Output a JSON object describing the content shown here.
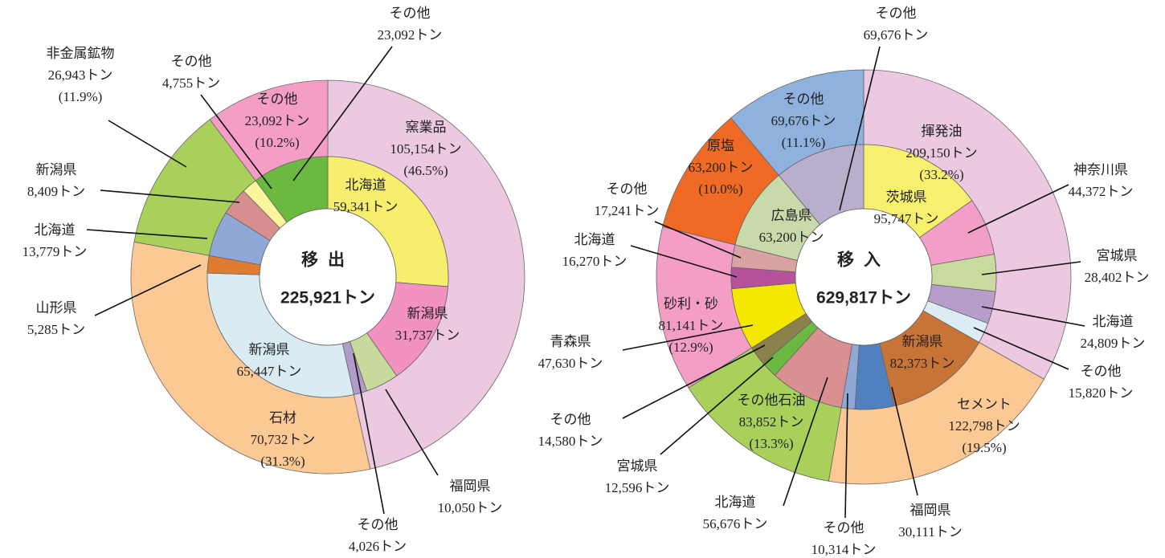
{
  "chart_data": [
    {
      "type": "double-donut",
      "title": "移出",
      "total": 225921,
      "total_label": "225,921トン",
      "outer": {
        "categories": [
          "窯業品",
          "石材",
          "非金属鉱物",
          "その他"
        ],
        "values": [
          105154,
          70732,
          26943,
          23092
        ],
        "value_labels": [
          "105,154トン",
          "70,732トン",
          "26,943トン",
          "23,092トン"
        ],
        "percent_labels": [
          "(46.5%)",
          "(31.3%)",
          "(11.9%)",
          "(10.2%)"
        ],
        "colors": [
          "#ecc9e1",
          "#fcc894",
          "#a8d05a",
          "#f49ec6"
        ]
      },
      "inner": {
        "categories": [
          "北海道",
          "新潟県",
          "福岡県",
          "その他",
          "新潟県",
          "山形県",
          "北海道",
          "新潟県",
          "その他",
          "その他"
        ],
        "values": [
          59341,
          31737,
          10050,
          4026,
          65447,
          5285,
          13779,
          8409,
          4755,
          23092
        ],
        "value_labels": [
          "59,341トン",
          "31,737トン",
          "10,050トン",
          "4,026トン",
          "65,447トン",
          "5,285トン",
          "13,779トン",
          "8,409トン",
          "4,755トン",
          "23,092トン"
        ],
        "colors": [
          "#f6ee6c",
          "#f192c0",
          "#c7da9c",
          "#b19cc9",
          "#d9ecf4",
          "#e07c2f",
          "#90a8d6",
          "#d78e8e",
          "#fbf59c",
          "#6cb942"
        ]
      }
    },
    {
      "type": "double-donut",
      "title": "移入",
      "total": 629817,
      "total_label": "629,817トン",
      "outer": {
        "categories": [
          "揮発油",
          "セメント",
          "その他石油",
          "砂利・砂",
          "原塩",
          "その他"
        ],
        "values": [
          209150,
          122798,
          83852,
          81141,
          63200,
          69676
        ],
        "value_labels": [
          "209,150トン",
          "122,798トン",
          "83,852トン",
          "81,141トン",
          "63,200トン",
          "69,676トン"
        ],
        "percent_labels": [
          "(33.2%)",
          "(19.5%)",
          "(13.3%)",
          "(12.9%)",
          "(10.0%)",
          "(11.1%)"
        ],
        "colors": [
          "#ecc9e1",
          "#fcc894",
          "#a8d05a",
          "#f49ec6",
          "#ef6b25",
          "#8fb1dd"
        ]
      },
      "inner": {
        "categories": [
          "茨城県",
          "神奈川県",
          "宮城県",
          "北海道",
          "その他",
          "新潟県",
          "福岡県",
          "その他",
          "北海道",
          "宮城県",
          "その他",
          "青森県",
          "北海道",
          "その他",
          "広島県",
          "その他"
        ],
        "values": [
          95747,
          44372,
          28402,
          24809,
          15820,
          82373,
          30111,
          10314,
          56676,
          12596,
          14580,
          47630,
          16270,
          17241,
          63200,
          69676
        ],
        "value_labels": [
          "95,747トン",
          "44,372トン",
          "28,402トン",
          "24,809トン",
          "15,820トン",
          "82,373トン",
          "30,111トン",
          "10,314トン",
          "56,676トン",
          "12,596トン",
          "14,580トン",
          "47,630トン",
          "16,270トン",
          "17,241トン",
          "63,200トン",
          "69,676トン"
        ],
        "colors": [
          "#f7ef6e",
          "#f39ec7",
          "#c8da9e",
          "#b69dca",
          "#dcedf4",
          "#c97437",
          "#4f80c0",
          "#90a8d6",
          "#d89090",
          "#6cb942",
          "#8c804c",
          "#f5e800",
          "#b6519d",
          "#daa2a2",
          "#c8d9aa",
          "#b9afcc"
        ]
      }
    }
  ]
}
